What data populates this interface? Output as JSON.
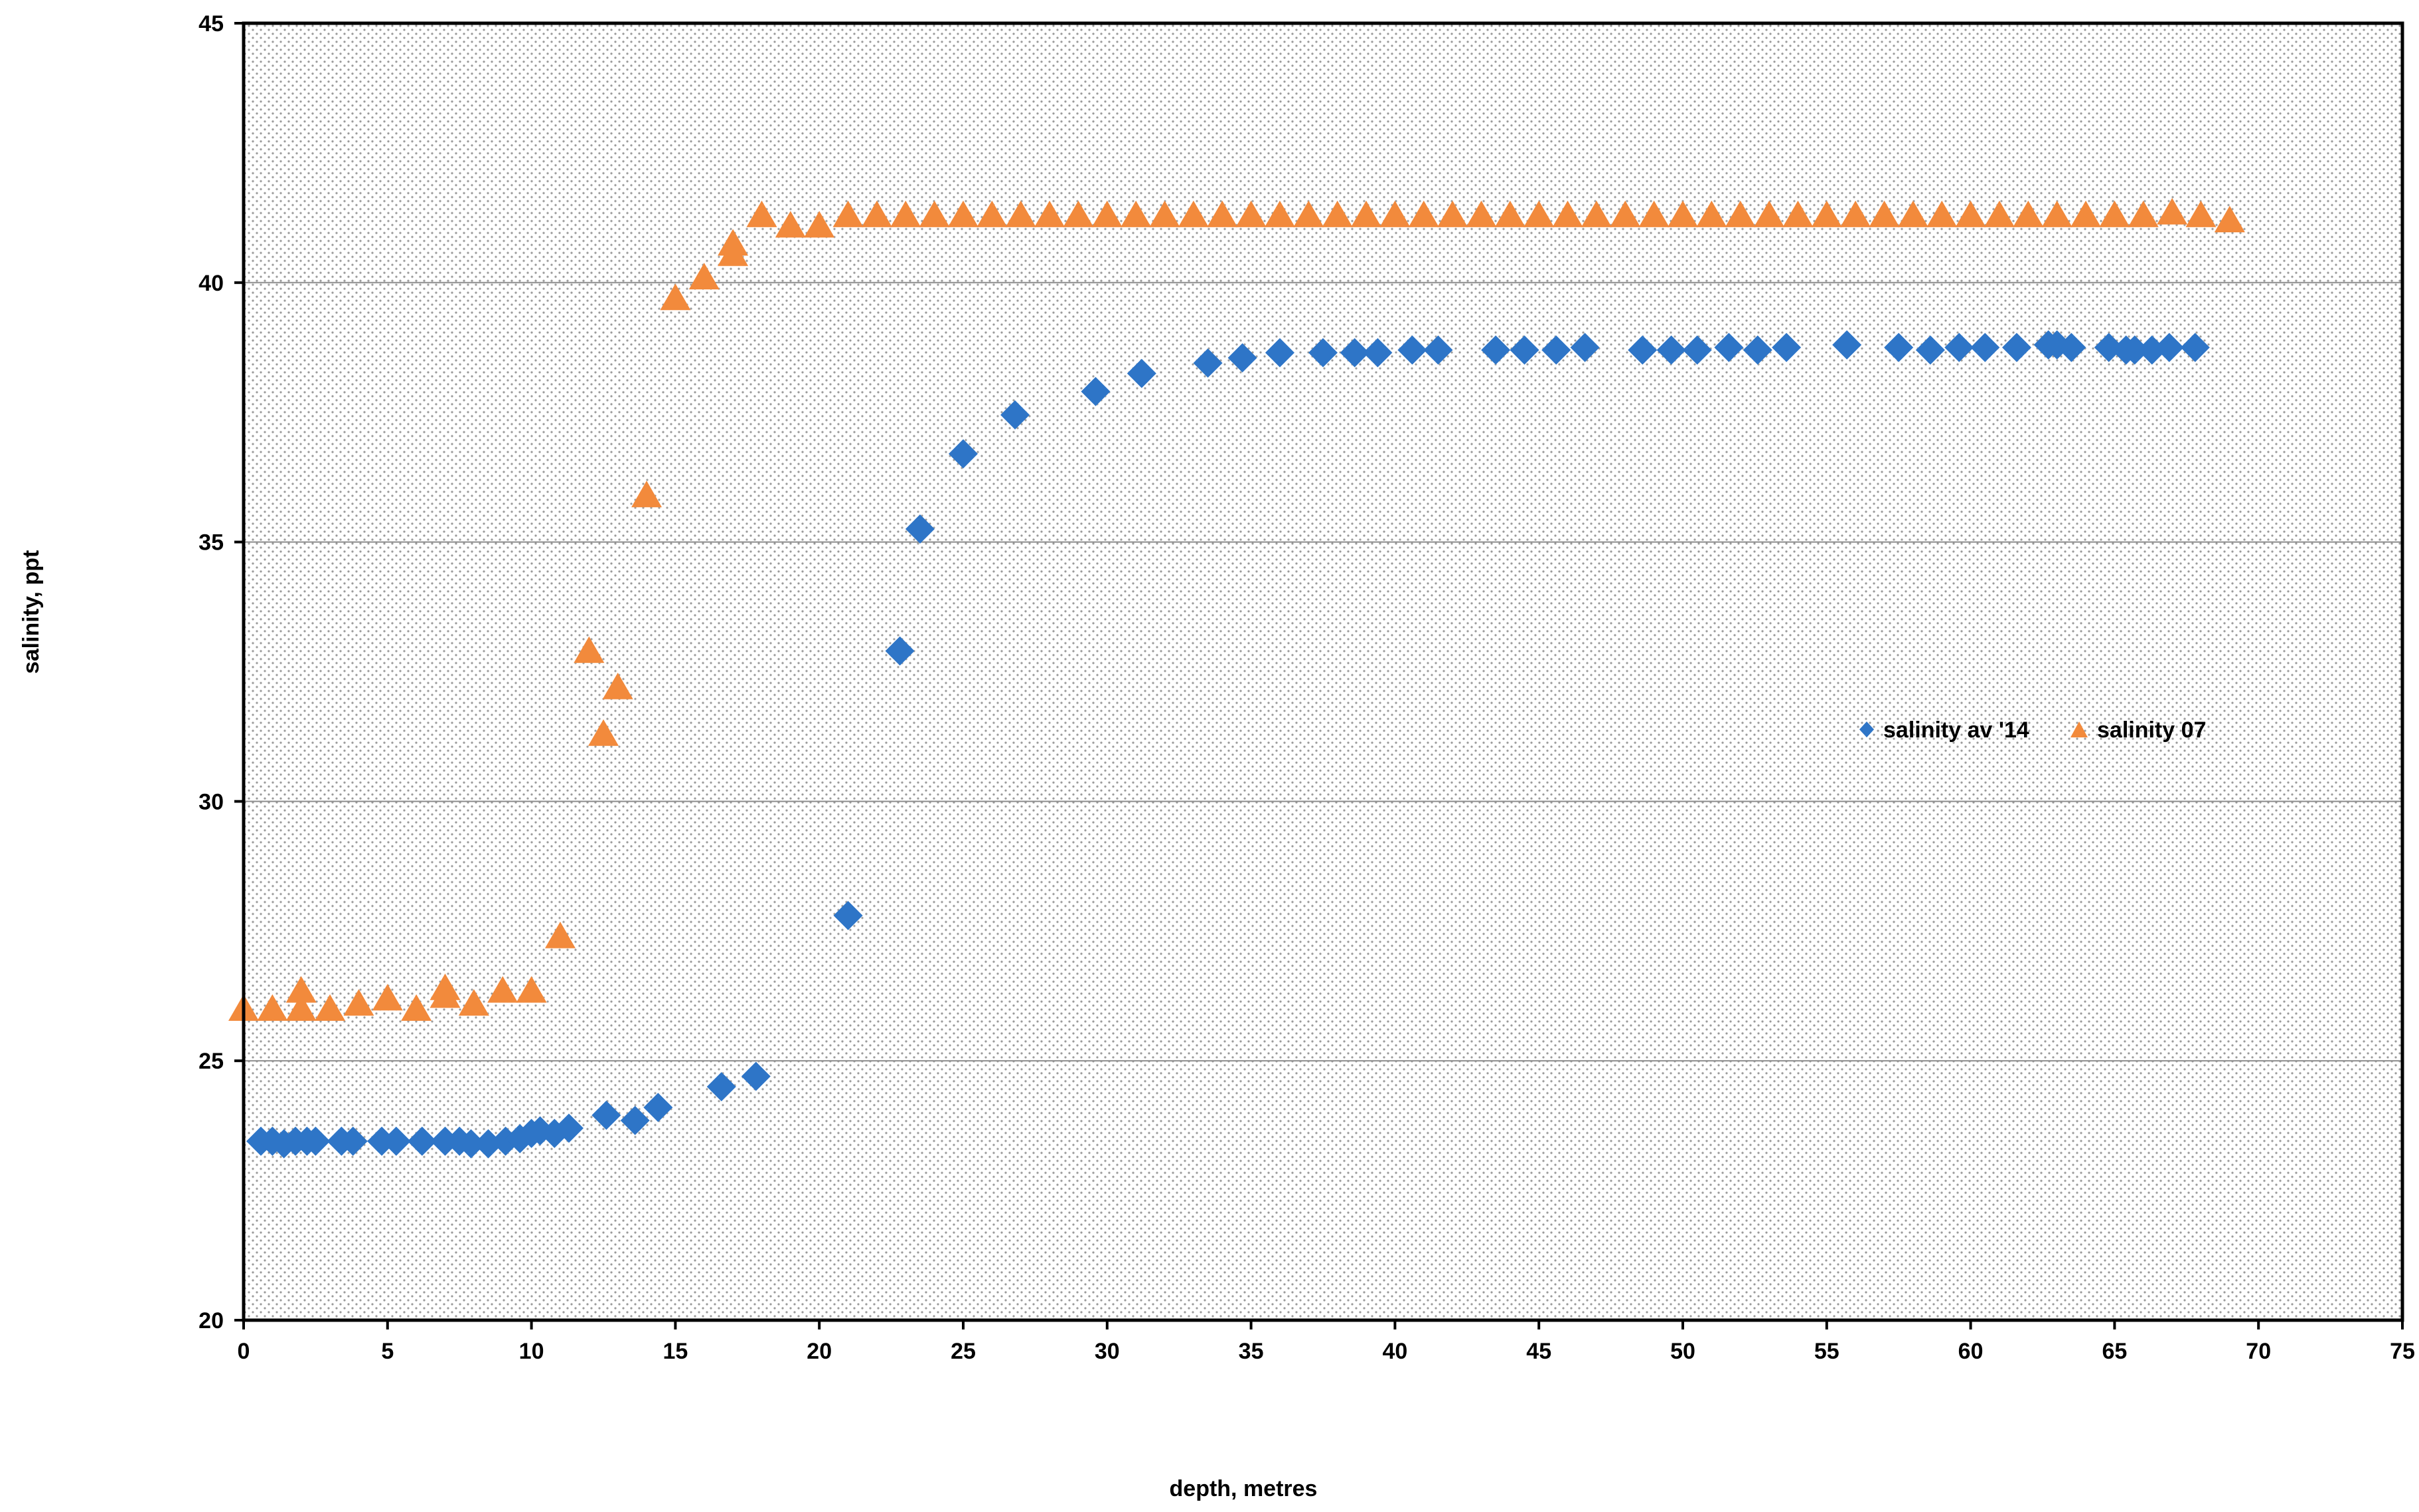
{
  "chart_data": {
    "type": "scatter",
    "title": "",
    "xlabel": "depth, metres",
    "ylabel": "salinity, ppt",
    "xlim": [
      0,
      75
    ],
    "ylim": [
      20,
      45
    ],
    "x_ticks": [
      "0",
      "5",
      "10",
      "15",
      "20",
      "25",
      "30",
      "35",
      "40",
      "45",
      "50",
      "55",
      "60",
      "65",
      "70",
      "75"
    ],
    "y_ticks": [
      "20",
      "25",
      "30",
      "35",
      "40",
      "45"
    ],
    "grid": "horizontal",
    "legend_position": "center-right",
    "background": "dotted",
    "series": [
      {
        "name": "salinity av '14",
        "marker": "diamond",
        "color": "#2E75C7",
        "points": [
          [
            0.6,
            23.45
          ],
          [
            1.0,
            23.45
          ],
          [
            1.4,
            23.4
          ],
          [
            1.8,
            23.45
          ],
          [
            2.2,
            23.45
          ],
          [
            2.5,
            23.45
          ],
          [
            3.4,
            23.45
          ],
          [
            3.8,
            23.45
          ],
          [
            4.8,
            23.45
          ],
          [
            5.3,
            23.45
          ],
          [
            6.2,
            23.45
          ],
          [
            7.0,
            23.45
          ],
          [
            7.5,
            23.45
          ],
          [
            7.9,
            23.4
          ],
          [
            8.5,
            23.4
          ],
          [
            9.1,
            23.45
          ],
          [
            9.6,
            23.5
          ],
          [
            10.0,
            23.6
          ],
          [
            10.3,
            23.65
          ],
          [
            10.8,
            23.6
          ],
          [
            11.3,
            23.7
          ],
          [
            12.6,
            23.95
          ],
          [
            13.6,
            23.85
          ],
          [
            14.4,
            24.1
          ],
          [
            16.6,
            24.5
          ],
          [
            17.8,
            24.7
          ],
          [
            21.0,
            27.8
          ],
          [
            22.8,
            32.9
          ],
          [
            23.5,
            35.25
          ],
          [
            25.0,
            36.7
          ],
          [
            26.8,
            37.45
          ],
          [
            29.6,
            37.9
          ],
          [
            31.2,
            38.25
          ],
          [
            33.5,
            38.45
          ],
          [
            34.7,
            38.55
          ],
          [
            36.0,
            38.65
          ],
          [
            37.5,
            38.65
          ],
          [
            38.6,
            38.65
          ],
          [
            39.4,
            38.65
          ],
          [
            40.6,
            38.7
          ],
          [
            41.5,
            38.7
          ],
          [
            43.5,
            38.7
          ],
          [
            44.5,
            38.7
          ],
          [
            45.6,
            38.7
          ],
          [
            46.6,
            38.75
          ],
          [
            48.6,
            38.7
          ],
          [
            49.6,
            38.7
          ],
          [
            50.5,
            38.7
          ],
          [
            51.6,
            38.75
          ],
          [
            52.6,
            38.7
          ],
          [
            53.6,
            38.75
          ],
          [
            55.7,
            38.8
          ],
          [
            57.5,
            38.75
          ],
          [
            58.6,
            38.7
          ],
          [
            59.6,
            38.75
          ],
          [
            60.5,
            38.75
          ],
          [
            61.6,
            38.75
          ],
          [
            62.7,
            38.8
          ],
          [
            63.0,
            38.8
          ],
          [
            63.5,
            38.75
          ],
          [
            64.8,
            38.75
          ],
          [
            65.4,
            38.7
          ],
          [
            65.7,
            38.7
          ],
          [
            66.3,
            38.7
          ],
          [
            66.9,
            38.75
          ],
          [
            67.8,
            38.75
          ]
        ]
      },
      {
        "name": "salinity 07",
        "marker": "triangle",
        "color": "#F28A3C",
        "points": [
          [
            0,
            26.0
          ],
          [
            1,
            26.0
          ],
          [
            2,
            26.0
          ],
          [
            2,
            26.35
          ],
          [
            3,
            26.0
          ],
          [
            4,
            26.1
          ],
          [
            5,
            26.2
          ],
          [
            6,
            26.0
          ],
          [
            7,
            26.25
          ],
          [
            7,
            26.4
          ],
          [
            8,
            26.1
          ],
          [
            9,
            26.35
          ],
          [
            10,
            26.35
          ],
          [
            11,
            27.4
          ],
          [
            12,
            32.9
          ],
          [
            12.5,
            31.3
          ],
          [
            13,
            32.2
          ],
          [
            14,
            35.9
          ],
          [
            15,
            39.7
          ],
          [
            16,
            40.1
          ],
          [
            17,
            40.55
          ],
          [
            17,
            40.75
          ],
          [
            18,
            41.3
          ],
          [
            19,
            41.1
          ],
          [
            20,
            41.1
          ],
          [
            21,
            41.3
          ],
          [
            22,
            41.3
          ],
          [
            23,
            41.3
          ],
          [
            24,
            41.3
          ],
          [
            25,
            41.3
          ],
          [
            26,
            41.3
          ],
          [
            27,
            41.3
          ],
          [
            28,
            41.3
          ],
          [
            29,
            41.3
          ],
          [
            30,
            41.3
          ],
          [
            31,
            41.3
          ],
          [
            32,
            41.3
          ],
          [
            33,
            41.3
          ],
          [
            34,
            41.3
          ],
          [
            35,
            41.3
          ],
          [
            36,
            41.3
          ],
          [
            37,
            41.3
          ],
          [
            38,
            41.3
          ],
          [
            39,
            41.3
          ],
          [
            40,
            41.3
          ],
          [
            41,
            41.3
          ],
          [
            42,
            41.3
          ],
          [
            43,
            41.3
          ],
          [
            44,
            41.3
          ],
          [
            45,
            41.3
          ],
          [
            46,
            41.3
          ],
          [
            47,
            41.3
          ],
          [
            48,
            41.3
          ],
          [
            49,
            41.3
          ],
          [
            50,
            41.3
          ],
          [
            51,
            41.3
          ],
          [
            52,
            41.3
          ],
          [
            53,
            41.3
          ],
          [
            54,
            41.3
          ],
          [
            55,
            41.3
          ],
          [
            56,
            41.3
          ],
          [
            57,
            41.3
          ],
          [
            58,
            41.3
          ],
          [
            59,
            41.3
          ],
          [
            60,
            41.3
          ],
          [
            61,
            41.3
          ],
          [
            62,
            41.3
          ],
          [
            63,
            41.3
          ],
          [
            64,
            41.3
          ],
          [
            65,
            41.3
          ],
          [
            66,
            41.3
          ],
          [
            67,
            41.35
          ],
          [
            68,
            41.3
          ],
          [
            69,
            41.2
          ]
        ]
      }
    ]
  }
}
